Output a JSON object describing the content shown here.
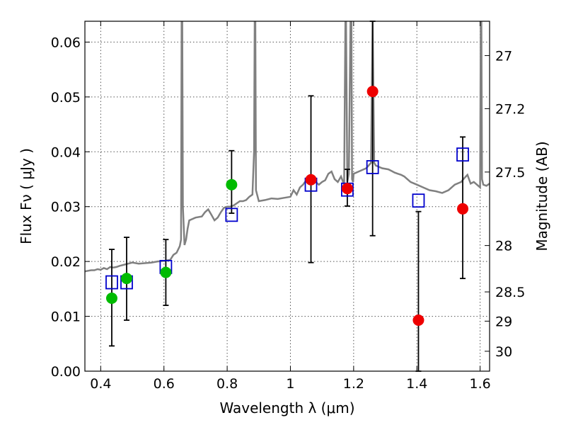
{
  "chart_data": {
    "type": "scatter",
    "xlabel": "Wavelength  λ (μm)",
    "ylabel": "Flux  Fν ( μJy )",
    "ylabel_right": "Magnitude (AB)",
    "xlim": [
      0.35,
      1.63
    ],
    "ylim": [
      0.0,
      0.0638
    ],
    "x_ticks": [
      {
        "value": 0.4,
        "label": "0.4"
      },
      {
        "value": 0.6,
        "label": "0.6"
      },
      {
        "value": 0.8,
        "label": "0.8"
      },
      {
        "value": 1.0,
        "label": "1"
      },
      {
        "value": 1.2,
        "label": "1.2"
      },
      {
        "value": 1.4,
        "label": "1.4"
      },
      {
        "value": 1.6,
        "label": "1.6"
      }
    ],
    "y_ticks": [
      {
        "value": 0.0,
        "label": "0.00"
      },
      {
        "value": 0.01,
        "label": "0.01"
      },
      {
        "value": 0.02,
        "label": "0.02"
      },
      {
        "value": 0.03,
        "label": "0.03"
      },
      {
        "value": 0.04,
        "label": "0.04"
      },
      {
        "value": 0.05,
        "label": "0.05"
      },
      {
        "value": 0.06,
        "label": "0.06"
      }
    ],
    "right_ticks": [
      {
        "label": "27",
        "mag": 27.0
      },
      {
        "label": "27.2",
        "mag": 27.2
      },
      {
        "label": "27.5",
        "mag": 27.5
      },
      {
        "label": "28",
        "mag": 28.0
      },
      {
        "label": "28.5",
        "mag": 28.5
      },
      {
        "label": "29",
        "mag": 29.0
      },
      {
        "label": "30",
        "mag": 30.0
      }
    ],
    "grid": true,
    "colors": {
      "model": "#808080",
      "green": "#00bb00",
      "red": "#ee0000",
      "square": "#0000cc",
      "errorbar": "#000000"
    },
    "series": [
      {
        "marker": "circle",
        "color": "green",
        "points": [
          {
            "x": 0.435,
            "y": 0.0133,
            "err_low": 0.0087,
            "err_high": 0.0089
          },
          {
            "x": 0.482,
            "y": 0.0169,
            "err_low": 0.0076,
            "err_high": 0.0075
          },
          {
            "x": 0.606,
            "y": 0.018,
            "err_low": 0.006,
            "err_high": 0.006
          },
          {
            "x": 0.814,
            "y": 0.034,
            "err_low": 0.0052,
            "err_high": 0.0062
          }
        ]
      },
      {
        "marker": "circle",
        "color": "red",
        "points": [
          {
            "x": 1.065,
            "y": 0.0349,
            "err_low": 0.0151,
            "err_high": 0.0153
          },
          {
            "x": 1.18,
            "y": 0.0333,
            "err_low": 0.0032,
            "err_high": 0.0035
          },
          {
            "x": 1.26,
            "y": 0.051,
            "err_low": 0.0263,
            "err_high": 0.0128
          },
          {
            "x": 1.405,
            "y": 0.0093,
            "err_low": 0.0093,
            "err_high": 0.0198
          },
          {
            "x": 1.545,
            "y": 0.0296,
            "err_low": 0.0127,
            "err_high": 0.0131
          }
        ]
      },
      {
        "marker": "square",
        "color": "square",
        "points": [
          {
            "x": 0.435,
            "y": 0.0162
          },
          {
            "x": 0.482,
            "y": 0.0162
          },
          {
            "x": 0.606,
            "y": 0.019
          },
          {
            "x": 0.814,
            "y": 0.0285
          },
          {
            "x": 1.065,
            "y": 0.034
          },
          {
            "x": 1.18,
            "y": 0.0331
          },
          {
            "x": 1.26,
            "y": 0.0372
          },
          {
            "x": 1.405,
            "y": 0.0311
          },
          {
            "x": 1.545,
            "y": 0.0395
          }
        ]
      }
    ],
    "model_spectrum": {
      "x": [
        0.35,
        0.37,
        0.38,
        0.39,
        0.4,
        0.41,
        0.42,
        0.43,
        0.44,
        0.45,
        0.46,
        0.48,
        0.5,
        0.52,
        0.54,
        0.56,
        0.58,
        0.6,
        0.62,
        0.63,
        0.64,
        0.65,
        0.654,
        0.656,
        0.658,
        0.66,
        0.665,
        0.67,
        0.675,
        0.68,
        0.7,
        0.72,
        0.73,
        0.74,
        0.75,
        0.76,
        0.77,
        0.78,
        0.79,
        0.8,
        0.81,
        0.82,
        0.83,
        0.84,
        0.85,
        0.86,
        0.87,
        0.88,
        0.885,
        0.887,
        0.889,
        0.891,
        0.9,
        0.92,
        0.94,
        0.96,
        0.98,
        1.0,
        1.01,
        1.02,
        1.03,
        1.04,
        1.05,
        1.06,
        1.07,
        1.08,
        1.09,
        1.1,
        1.11,
        1.12,
        1.13,
        1.14,
        1.15,
        1.16,
        1.17,
        1.174,
        1.176,
        1.18,
        1.185,
        1.19,
        1.193,
        1.195,
        1.198,
        1.2,
        1.22,
        1.24,
        1.255,
        1.26,
        1.265,
        1.27,
        1.29,
        1.31,
        1.32,
        1.33,
        1.34,
        1.35,
        1.36,
        1.38,
        1.4,
        1.42,
        1.44,
        1.46,
        1.48,
        1.5,
        1.52,
        1.54,
        1.55,
        1.555,
        1.56,
        1.57,
        1.58,
        1.59,
        1.6,
        1.602,
        1.604,
        1.606,
        1.61,
        1.62,
        1.63
      ],
      "y": [
        0.0182,
        0.0184,
        0.0184,
        0.0186,
        0.0185,
        0.0188,
        0.0186,
        0.019,
        0.0189,
        0.019,
        0.0192,
        0.0195,
        0.0198,
        0.0196,
        0.0197,
        0.0198,
        0.02,
        0.0201,
        0.0203,
        0.0212,
        0.0216,
        0.0228,
        0.024,
        0.0638,
        0.0638,
        0.03,
        0.023,
        0.024,
        0.026,
        0.0275,
        0.028,
        0.0282,
        0.029,
        0.0295,
        0.0285,
        0.0275,
        0.028,
        0.029,
        0.0298,
        0.03,
        0.03,
        0.0302,
        0.0306,
        0.031,
        0.031,
        0.0312,
        0.0318,
        0.0322,
        0.04,
        0.0638,
        0.0638,
        0.033,
        0.031,
        0.0312,
        0.0315,
        0.0314,
        0.0316,
        0.0318,
        0.033,
        0.0322,
        0.0335,
        0.034,
        0.0348,
        0.0355,
        0.0352,
        0.0345,
        0.034,
        0.0345,
        0.0348,
        0.036,
        0.0364,
        0.035,
        0.0345,
        0.0355,
        0.034,
        0.0638,
        0.0638,
        0.0345,
        0.036,
        0.0638,
        0.0638,
        0.035,
        0.0345,
        0.036,
        0.0365,
        0.037,
        0.038,
        0.0638,
        0.038,
        0.0375,
        0.037,
        0.0368,
        0.0365,
        0.0362,
        0.036,
        0.0358,
        0.0355,
        0.0345,
        0.034,
        0.0335,
        0.033,
        0.0328,
        0.0325,
        0.033,
        0.034,
        0.0345,
        0.0352,
        0.0355,
        0.0358,
        0.0342,
        0.0345,
        0.034,
        0.0335,
        0.0638,
        0.0638,
        0.035,
        0.034,
        0.0338,
        0.0342
      ]
    }
  }
}
